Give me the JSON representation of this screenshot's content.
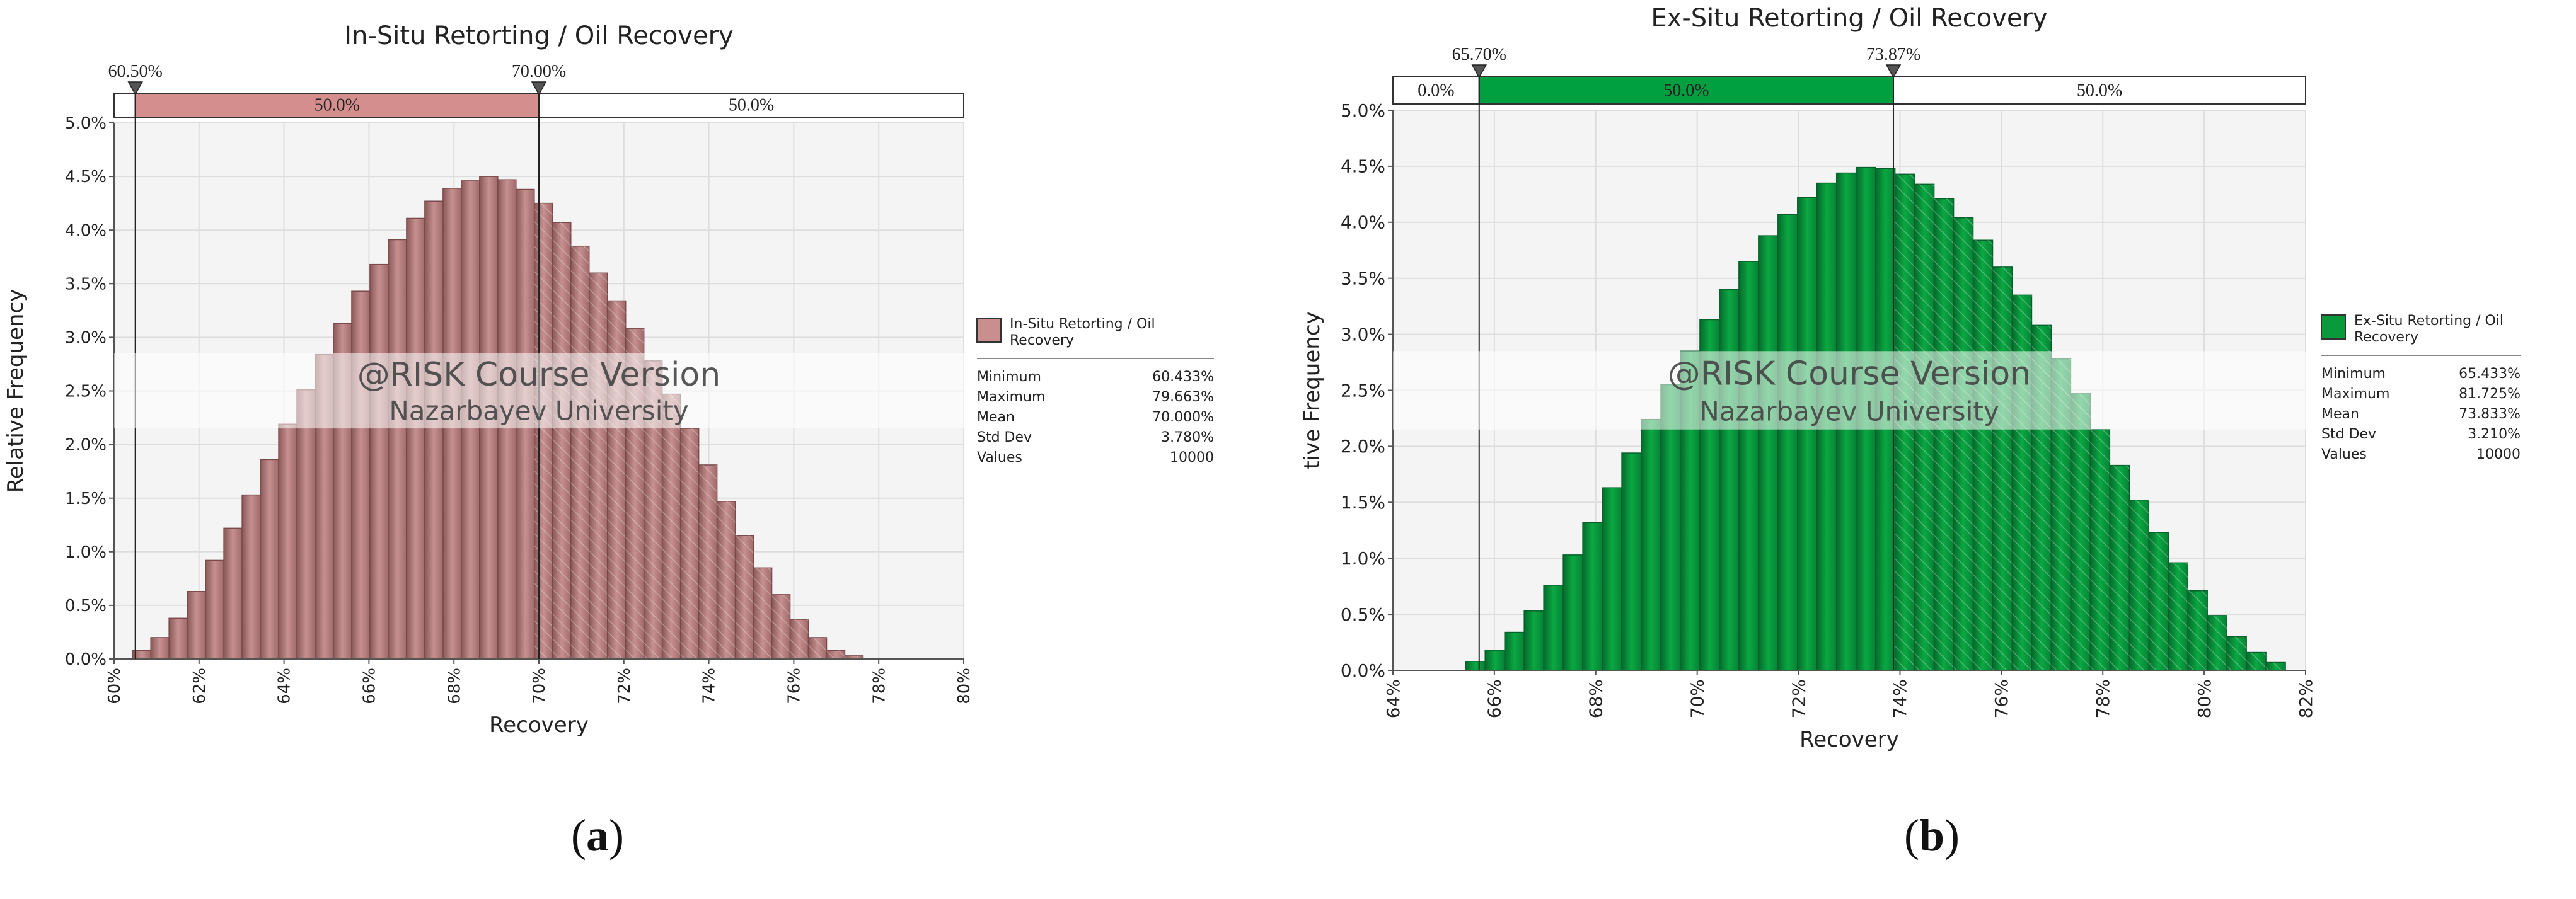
{
  "panels": [
    {
      "id": "a",
      "caption": "a",
      "color": "#c98f8f",
      "color_dark": "#7a4a4a",
      "bar_top_color": "#d48e8e",
      "chart_data": {
        "type": "bar",
        "title": "In-Situ Retorting / Oil Recovery",
        "xlabel": "Recovery",
        "ylabel": "Relative Frequency",
        "xlim": [
          60,
          80
        ],
        "ylim": [
          0,
          5.0
        ],
        "x_ticks": [
          "60%",
          "62%",
          "64%",
          "66%",
          "68%",
          "70%",
          "72%",
          "74%",
          "76%",
          "78%",
          "80%"
        ],
        "y_ticks": [
          "0.0%",
          "0.5%",
          "1.0%",
          "1.5%",
          "2.0%",
          "2.5%",
          "3.0%",
          "3.5%",
          "4.0%",
          "4.5%",
          "5.0%"
        ],
        "bin_start": 60.433,
        "bin_width": 0.43,
        "values": [
          0.08,
          0.2,
          0.38,
          0.63,
          0.92,
          1.22,
          1.53,
          1.86,
          2.19,
          2.51,
          2.84,
          3.13,
          3.43,
          3.68,
          3.91,
          4.11,
          4.27,
          4.39,
          4.46,
          4.5,
          4.47,
          4.38,
          4.25,
          4.07,
          3.85,
          3.6,
          3.34,
          3.08,
          2.78,
          2.47,
          2.15,
          1.81,
          1.47,
          1.15,
          0.85,
          0.6,
          0.37,
          0.2,
          0.08,
          0.03
        ],
        "delimiters": [
          {
            "value": 60.5,
            "label": "60.50%"
          },
          {
            "value": 70.0,
            "label": "70.00%"
          }
        ],
        "bands": [
          {
            "label": "50.0%",
            "highlight": true
          },
          {
            "label": "50.0%",
            "highlight": false
          }
        ],
        "legend": {
          "name": "In-Situ Retorting / Oil Recovery",
          "name_lines": [
            "In-Situ Retorting / Oil",
            "Recovery"
          ],
          "stats": [
            {
              "label": "Minimum",
              "value": "60.433%"
            },
            {
              "label": "Maximum",
              "value": "79.663%"
            },
            {
              "label": "Mean",
              "value": "70.000%"
            },
            {
              "label": "Std Dev",
              "value": "3.780%"
            },
            {
              "label": "Values",
              "value": "10000"
            }
          ]
        },
        "watermark": [
          "@RISK Course Version",
          "Nazarbayev University"
        ]
      }
    },
    {
      "id": "b",
      "caption": "b",
      "color": "#0a9a3c",
      "color_dark": "#05602a",
      "bar_top_color": "#00a040",
      "chart_data": {
        "type": "bar",
        "title": "Ex-Situ Retorting / Oil Recovery",
        "xlabel": "Recovery",
        "ylabel": "tive Frequency",
        "xlim": [
          64,
          82
        ],
        "ylim": [
          0,
          5.0
        ],
        "x_ticks": [
          "64%",
          "66%",
          "68%",
          "70%",
          "72%",
          "74%",
          "76%",
          "78%",
          "80%",
          "82%"
        ],
        "y_ticks": [
          "0.0%",
          "0.5%",
          "1.0%",
          "1.5%",
          "2.0%",
          "2.5%",
          "3.0%",
          "3.5%",
          "4.0%",
          "4.5%",
          "5.0%"
        ],
        "bin_start": 65.433,
        "bin_width": 0.385,
        "values": [
          0.08,
          0.18,
          0.34,
          0.53,
          0.76,
          1.03,
          1.32,
          1.63,
          1.94,
          2.24,
          2.55,
          2.85,
          3.13,
          3.4,
          3.65,
          3.88,
          4.07,
          4.22,
          4.35,
          4.44,
          4.49,
          4.48,
          4.43,
          4.34,
          4.21,
          4.04,
          3.84,
          3.6,
          3.35,
          3.08,
          2.78,
          2.47,
          2.15,
          1.83,
          1.52,
          1.23,
          0.96,
          0.71,
          0.49,
          0.3,
          0.16,
          0.07
        ],
        "delimiters": [
          {
            "value": 65.7,
            "label": "65.70%"
          },
          {
            "value": 73.87,
            "label": "73.87%"
          }
        ],
        "bands": [
          {
            "label": "0.0%",
            "highlight": false
          },
          {
            "label": "50.0%",
            "highlight": true
          },
          {
            "label": "50.0%",
            "highlight": false
          }
        ],
        "legend": {
          "name": "Ex-Situ Retorting / Oil Recovery",
          "name_lines": [
            "Ex-Situ Retorting / Oil",
            "Recovery"
          ],
          "stats": [
            {
              "label": "Minimum",
              "value": "65.433%"
            },
            {
              "label": "Maximum",
              "value": "81.725%"
            },
            {
              "label": "Mean",
              "value": "73.833%"
            },
            {
              "label": "Std Dev",
              "value": "3.210%"
            },
            {
              "label": "Values",
              "value": "10000"
            }
          ]
        },
        "watermark": [
          "@RISK Course Version",
          "Nazarbayev University"
        ]
      }
    }
  ]
}
